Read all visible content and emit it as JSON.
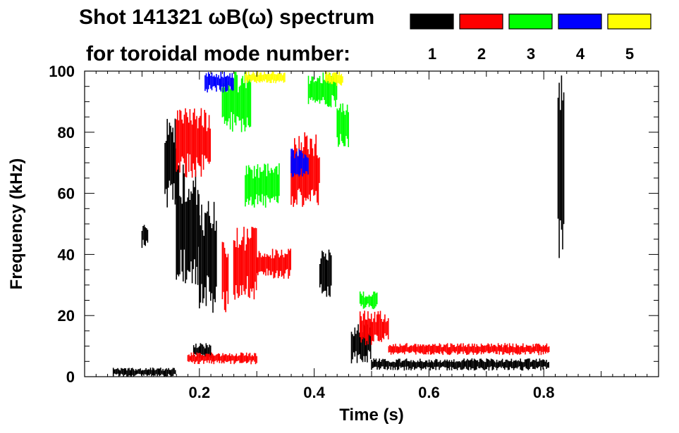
{
  "chart_data": {
    "type": "heatmap",
    "title_line1": "Shot 141321 ωB(ω) spectrum",
    "title_line2": "for toroidal mode number:",
    "xlabel": "Time (s)",
    "ylabel": "Frequency (kHz)",
    "xlim": [
      0.0,
      1.0
    ],
    "ylim": [
      0,
      100
    ],
    "x_ticks": [
      0.2,
      0.4,
      0.6,
      0.8
    ],
    "x_tick_labels": [
      "0.2",
      "0.4",
      "0.6",
      "0.8"
    ],
    "y_ticks": [
      0,
      20,
      40,
      60,
      80,
      100
    ],
    "y_tick_labels": [
      "0",
      "20",
      "40",
      "60",
      "80",
      "100"
    ],
    "grid": false,
    "legend_position": "top-right",
    "modes": [
      {
        "n": 1,
        "label": "1",
        "color": "#000000"
      },
      {
        "n": 2,
        "label": "2",
        "color": "#ff0000"
      },
      {
        "n": 3,
        "label": "3",
        "color": "#00ff00"
      },
      {
        "n": 4,
        "label": "4",
        "color": "#0000ff"
      },
      {
        "n": 5,
        "label": "5",
        "color": "#ffff00"
      }
    ],
    "features": [
      {
        "mode": 1,
        "shape": "band",
        "t": [
          0.14,
          0.16
        ],
        "f": [
          55,
          85
        ]
      },
      {
        "mode": 1,
        "shape": "band",
        "t": [
          0.16,
          0.2
        ],
        "f": [
          30,
          70
        ]
      },
      {
        "mode": 1,
        "shape": "band",
        "t": [
          0.2,
          0.23
        ],
        "f": [
          20,
          60
        ]
      },
      {
        "mode": 1,
        "shape": "band",
        "t": [
          0.1,
          0.11
        ],
        "f": [
          42,
          50
        ]
      },
      {
        "mode": 1,
        "shape": "band",
        "t": [
          0.41,
          0.43
        ],
        "f": [
          25,
          42
        ]
      },
      {
        "mode": 1,
        "shape": "band",
        "t": [
          0.465,
          0.5
        ],
        "f": [
          4,
          18
        ]
      },
      {
        "mode": 1,
        "shape": "band",
        "t": [
          0.5,
          0.81
        ],
        "f": [
          2,
          6
        ]
      },
      {
        "mode": 1,
        "shape": "band",
        "t": [
          0.825,
          0.835
        ],
        "f": [
          35,
          100
        ]
      },
      {
        "mode": 1,
        "shape": "band",
        "t": [
          0.19,
          0.22
        ],
        "f": [
          6,
          11
        ]
      },
      {
        "mode": 1,
        "shape": "band",
        "t": [
          0.05,
          0.16
        ],
        "f": [
          0,
          3
        ]
      },
      {
        "mode": 2,
        "shape": "band",
        "t": [
          0.16,
          0.22
        ],
        "f": [
          65,
          88
        ]
      },
      {
        "mode": 2,
        "shape": "band",
        "t": [
          0.26,
          0.3
        ],
        "f": [
          25,
          50
        ]
      },
      {
        "mode": 2,
        "shape": "band",
        "t": [
          0.3,
          0.36
        ],
        "f": [
          32,
          42
        ]
      },
      {
        "mode": 2,
        "shape": "band",
        "t": [
          0.36,
          0.41
        ],
        "f": [
          55,
          80
        ]
      },
      {
        "mode": 2,
        "shape": "band",
        "t": [
          0.24,
          0.25
        ],
        "f": [
          20,
          45
        ]
      },
      {
        "mode": 2,
        "shape": "band",
        "t": [
          0.48,
          0.53
        ],
        "f": [
          10,
          22
        ]
      },
      {
        "mode": 2,
        "shape": "band",
        "t": [
          0.53,
          0.81
        ],
        "f": [
          7,
          11
        ]
      },
      {
        "mode": 2,
        "shape": "band",
        "t": [
          0.18,
          0.3
        ],
        "f": [
          4,
          8
        ]
      },
      {
        "mode": 3,
        "shape": "band",
        "t": [
          0.24,
          0.29
        ],
        "f": [
          80,
          100
        ]
      },
      {
        "mode": 3,
        "shape": "band",
        "t": [
          0.28,
          0.34
        ],
        "f": [
          55,
          70
        ]
      },
      {
        "mode": 3,
        "shape": "band",
        "t": [
          0.39,
          0.44
        ],
        "f": [
          88,
          100
        ]
      },
      {
        "mode": 3,
        "shape": "band",
        "t": [
          0.44,
          0.46
        ],
        "f": [
          75,
          90
        ]
      },
      {
        "mode": 3,
        "shape": "band",
        "t": [
          0.48,
          0.51
        ],
        "f": [
          22,
          28
        ]
      },
      {
        "mode": 4,
        "shape": "band",
        "t": [
          0.21,
          0.26
        ],
        "f": [
          93,
          100
        ]
      },
      {
        "mode": 4,
        "shape": "band",
        "t": [
          0.36,
          0.39
        ],
        "f": [
          65,
          75
        ]
      },
      {
        "mode": 5,
        "shape": "band",
        "t": [
          0.28,
          0.35
        ],
        "f": [
          96,
          100
        ]
      },
      {
        "mode": 5,
        "shape": "band",
        "t": [
          0.42,
          0.45
        ],
        "f": [
          95,
          100
        ]
      }
    ]
  }
}
